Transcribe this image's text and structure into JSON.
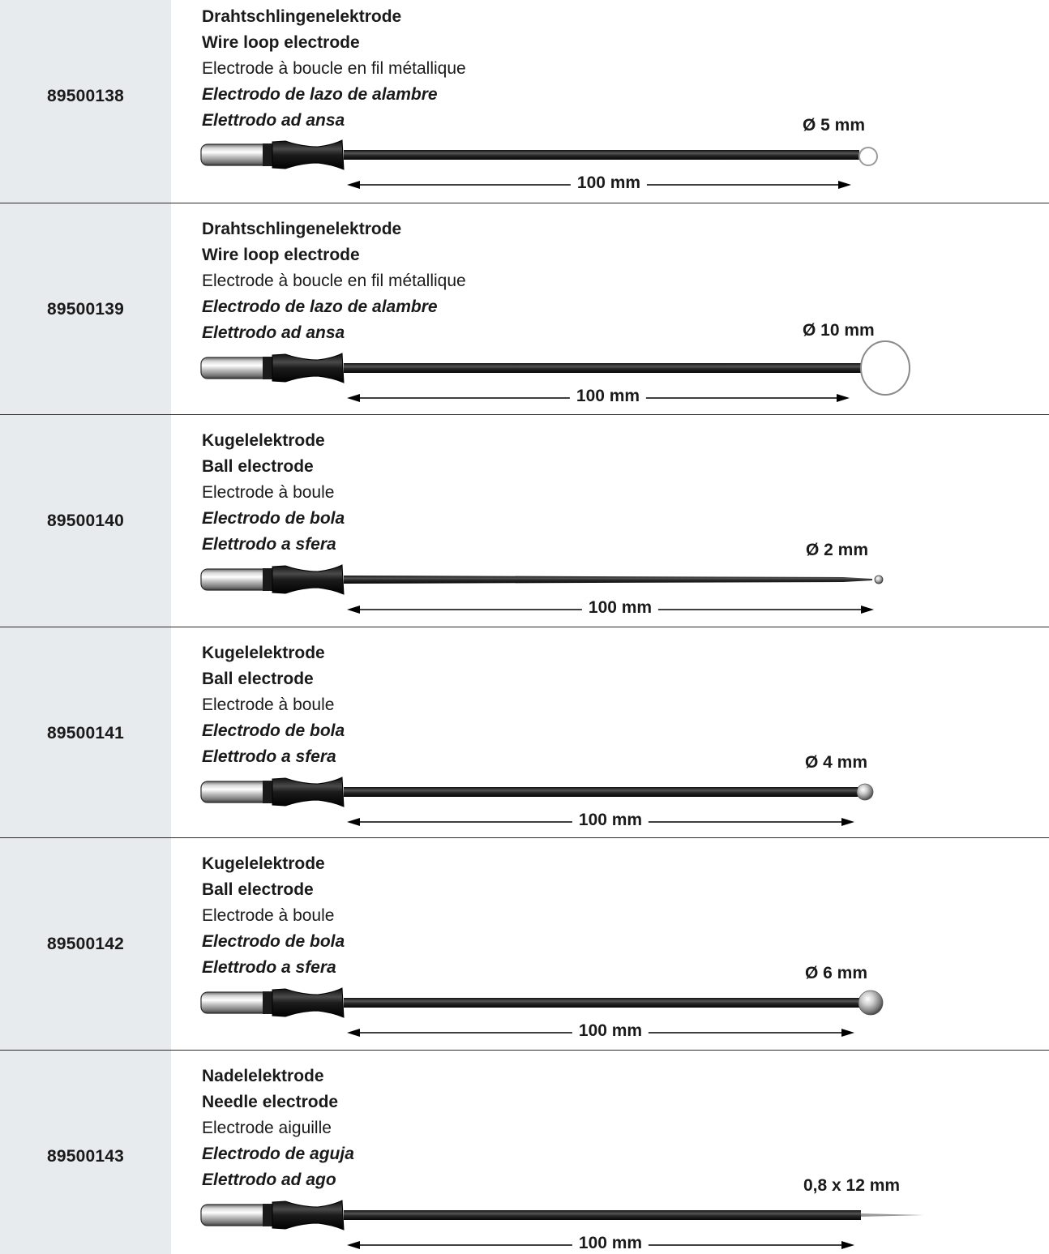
{
  "items": [
    {
      "code": "89500138",
      "names": {
        "de": "Drahtschlingenelektrode",
        "en": "Wire loop electrode",
        "fr": "Electrode à boucle en fil métallique",
        "es": "Electrodo de lazo de alambre",
        "it": "Elettrodo ad ansa"
      },
      "dimension": "Ø 5 mm",
      "length": "100 mm",
      "tip": "loop-small"
    },
    {
      "code": "89500139",
      "names": {
        "de": "Drahtschlingenelektrode",
        "en": "Wire loop electrode",
        "fr": "Electrode à boucle en fil métallique",
        "es": "Electrodo de lazo de alambre",
        "it": "Elettrodo ad ansa"
      },
      "dimension": "Ø 10 mm",
      "length": "100 mm",
      "tip": "loop-large"
    },
    {
      "code": "89500140",
      "names": {
        "de": "Kugelelektrode",
        "en": "Ball electrode",
        "fr": "Electrode à boule",
        "es": "Electrodo de bola",
        "it": "Elettrodo a sfera"
      },
      "dimension": "Ø 2 mm",
      "length": "100 mm",
      "tip": "ball-small-tapered"
    },
    {
      "code": "89500141",
      "names": {
        "de": "Kugelelektrode",
        "en": "Ball electrode",
        "fr": "Electrode à boule",
        "es": "Electrodo de bola",
        "it": "Elettrodo a sfera"
      },
      "dimension": "Ø 4 mm",
      "length": "100 mm",
      "tip": "ball-medium"
    },
    {
      "code": "89500142",
      "names": {
        "de": "Kugelelektrode",
        "en": "Ball electrode",
        "fr": "Electrode à boule",
        "es": "Electrodo de bola",
        "it": "Elettrodo a sfera"
      },
      "dimension": "Ø 6 mm",
      "length": "100 mm",
      "tip": "ball-large"
    },
    {
      "code": "89500143",
      "names": {
        "de": "Nadelelektrode",
        "en": "Needle electrode",
        "fr": "Electrode aiguille",
        "es": "Electrodo de aguja",
        "it": "Elettrodo ad ago"
      },
      "dimension": "0,8 x 12 mm",
      "length": "100 mm",
      "tip": "needle"
    }
  ]
}
